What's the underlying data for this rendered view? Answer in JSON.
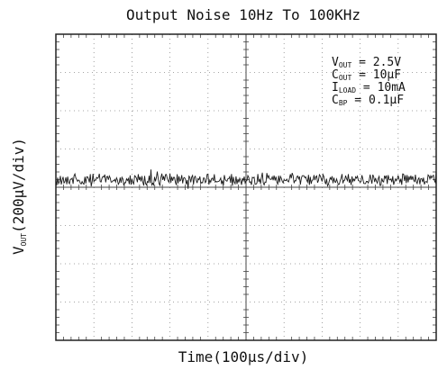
{
  "chart_data": {
    "type": "line",
    "title": "Output Noise 10Hz To 100KHz",
    "xlabel": "Time(100µs/div)",
    "ylabel": "V",
    "ylabel_sub": "OUT",
    "ylabel_units": "(200µV/div)",
    "x_divisions": 10,
    "y_divisions": 8,
    "grid": true,
    "trace_center_div": 3.8,
    "trace_peak_to_peak_div": 0.35,
    "trace_color": "#1a1a1a",
    "annotations": [
      {
        "name": "V",
        "sub": "OUT",
        "text": " = 2.5V"
      },
      {
        "name": "C",
        "sub": "OUT",
        "text": " = 10µF"
      },
      {
        "name": "I",
        "sub": "LOAD",
        "text": " = 10mA"
      },
      {
        "name": "C",
        "sub": "BP",
        "text": " = 0.1µF"
      }
    ]
  }
}
